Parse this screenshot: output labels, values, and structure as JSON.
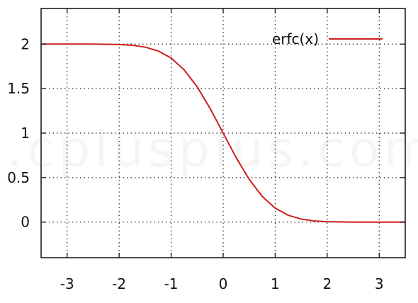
{
  "chart_data": {
    "type": "line",
    "title": "",
    "xlabel": "",
    "ylabel": "",
    "xlim": [
      -3.5,
      3.5
    ],
    "ylim": [
      -0.4,
      2.4
    ],
    "x_ticks": [
      -3,
      -2,
      -1,
      0,
      1,
      2,
      3
    ],
    "x_tick_labels": [
      "-3",
      "-2",
      "-1",
      "0",
      "1",
      "2",
      "3"
    ],
    "y_ticks": [
      0,
      0.5,
      1,
      1.5,
      2
    ],
    "y_tick_labels": [
      "0",
      "0.5",
      "1",
      "1.5",
      "2"
    ],
    "grid": true,
    "grid_style": "dotted",
    "legend_position": "top-right",
    "series": [
      {
        "name": "erfc(x)",
        "color": "#cc1f1f",
        "x": [
          -3.5,
          -3.0,
          -2.5,
          -2.0,
          -1.75,
          -1.5,
          -1.25,
          -1.0,
          -0.75,
          -0.5,
          -0.25,
          0.0,
          0.25,
          0.5,
          0.75,
          1.0,
          1.25,
          1.5,
          1.75,
          2.0,
          2.5,
          3.0,
          3.5
        ],
        "y": [
          2.0,
          2.0,
          2.0,
          1.995,
          1.987,
          1.966,
          1.923,
          1.843,
          1.711,
          1.52,
          1.276,
          1.0,
          0.724,
          0.48,
          0.289,
          0.157,
          0.077,
          0.034,
          0.013,
          0.005,
          0.0,
          0.0,
          0.0
        ]
      }
    ]
  }
}
